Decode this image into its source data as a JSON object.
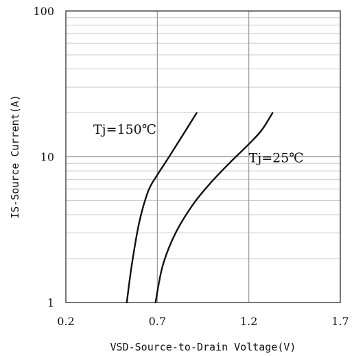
{
  "chart_data": {
    "type": "line",
    "title": "",
    "xlabel": "VSD-Source-to-Drain Voltage(V)",
    "ylabel": "IS-Source Current(A)",
    "xlim": [
      0.2,
      1.7
    ],
    "ylim": [
      1,
      100
    ],
    "yscale": "log",
    "grid": true,
    "legend": "none",
    "xticks": [
      "0.2",
      "0.7",
      "1.2",
      "1.7"
    ],
    "yticks": [
      "1",
      "10",
      "100"
    ],
    "series": [
      {
        "name": "Tj=150℃",
        "label_pos": [
          0.35,
          15.5
        ],
        "points": [
          [
            0.533,
            1
          ],
          [
            0.56,
            1.8
          ],
          [
            0.6,
            3.5
          ],
          [
            0.65,
            5.8
          ],
          [
            0.7,
            7.5
          ],
          [
            0.76,
            9.8
          ],
          [
            0.83,
            13.5
          ],
          [
            0.915,
            20
          ]
        ]
      },
      {
        "name": "Tj=25℃",
        "label_pos": [
          1.2,
          9.9
        ],
        "points": [
          [
            0.69,
            1
          ],
          [
            0.73,
            1.8
          ],
          [
            0.8,
            3
          ],
          [
            0.9,
            4.8
          ],
          [
            1.0,
            6.8
          ],
          [
            1.1,
            9.2
          ],
          [
            1.2,
            12.2
          ],
          [
            1.27,
            15.2
          ],
          [
            1.33,
            20
          ]
        ]
      }
    ]
  }
}
